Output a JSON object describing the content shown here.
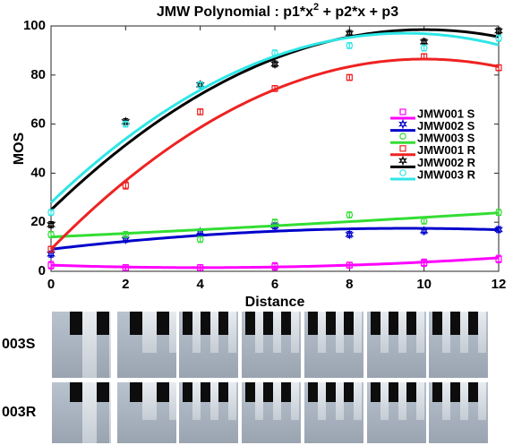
{
  "chart_data": {
    "type": "scatter",
    "title_parts": [
      "JMW Polynomial : p1*x",
      "2",
      " + p2*x + p3"
    ],
    "xlabel": "Distance",
    "ylabel": "MOS",
    "x": [
      0,
      2,
      4,
      6,
      8,
      10,
      12
    ],
    "xlim": [
      0,
      12
    ],
    "ylim": [
      0,
      100
    ],
    "xticks": [
      0,
      2,
      4,
      6,
      8,
      10,
      12
    ],
    "yticks": [
      0,
      20,
      40,
      60,
      80,
      100
    ],
    "legend": "right",
    "series": [
      {
        "name": "JMW001 S",
        "color": "#ff00ff",
        "marker": "square",
        "values": [
          2.5,
          1.5,
          1.5,
          2,
          2.5,
          3.5,
          5
        ],
        "errors": [
          1.5,
          1.2,
          1.2,
          1.5,
          1.2,
          1.5,
          1.5
        ],
        "fit_coefficients": [
          0.0625,
          -0.5,
          2.5
        ]
      },
      {
        "name": "JMW002 S",
        "color": "#0000cc",
        "marker": "star",
        "values": [
          7,
          13,
          16,
          18.5,
          15,
          16.5,
          17
        ],
        "errors": [
          1.2,
          1.2,
          1.2,
          1.2,
          1.2,
          1.2,
          1.2
        ],
        "fit_coefficients": [
          -0.0942,
          1.79,
          9
        ]
      },
      {
        "name": "JMW003 S",
        "color": "#33dd33",
        "marker": "circle",
        "values": [
          15,
          15,
          13,
          20,
          23,
          20.5,
          24
        ],
        "errors": [
          1.2,
          1.2,
          1.2,
          1.2,
          1.2,
          1.2,
          1.2
        ],
        "fit_coefficients": [
          0.01,
          0.7,
          14
        ]
      },
      {
        "name": "JMW001 R",
        "color": "#ee2222",
        "marker": "square",
        "values": [
          9,
          35,
          65,
          74.5,
          79,
          87.5,
          83
        ],
        "errors": [
          1.2,
          1.5,
          1.2,
          1.2,
          1.2,
          1.2,
          1.2
        ],
        "fit_coefficients": [
          -0.775,
          15.5,
          9
        ]
      },
      {
        "name": "JMW002 R",
        "color": "#000000",
        "marker": "star",
        "values": [
          19,
          61,
          76,
          84.5,
          97,
          93.5,
          98
        ],
        "errors": [
          1.2,
          1.2,
          1.2,
          1.2,
          1.2,
          1.2,
          1.2
        ],
        "fit_coefficients": [
          -0.735,
          14.7,
          25
        ]
      },
      {
        "name": "JMW003 R",
        "color": "#2ee6e6",
        "marker": "circle",
        "values": [
          24,
          60,
          76,
          89,
          92,
          91,
          95
        ],
        "errors": [
          1.2,
          1.2,
          1.2,
          1.2,
          1.2,
          1.2,
          1.2
        ],
        "fit_coefficients": [
          -0.7645,
          14.53,
          28
        ]
      }
    ]
  },
  "images": {
    "rows": [
      {
        "label": "003S"
      },
      {
        "label": "003R"
      }
    ]
  }
}
